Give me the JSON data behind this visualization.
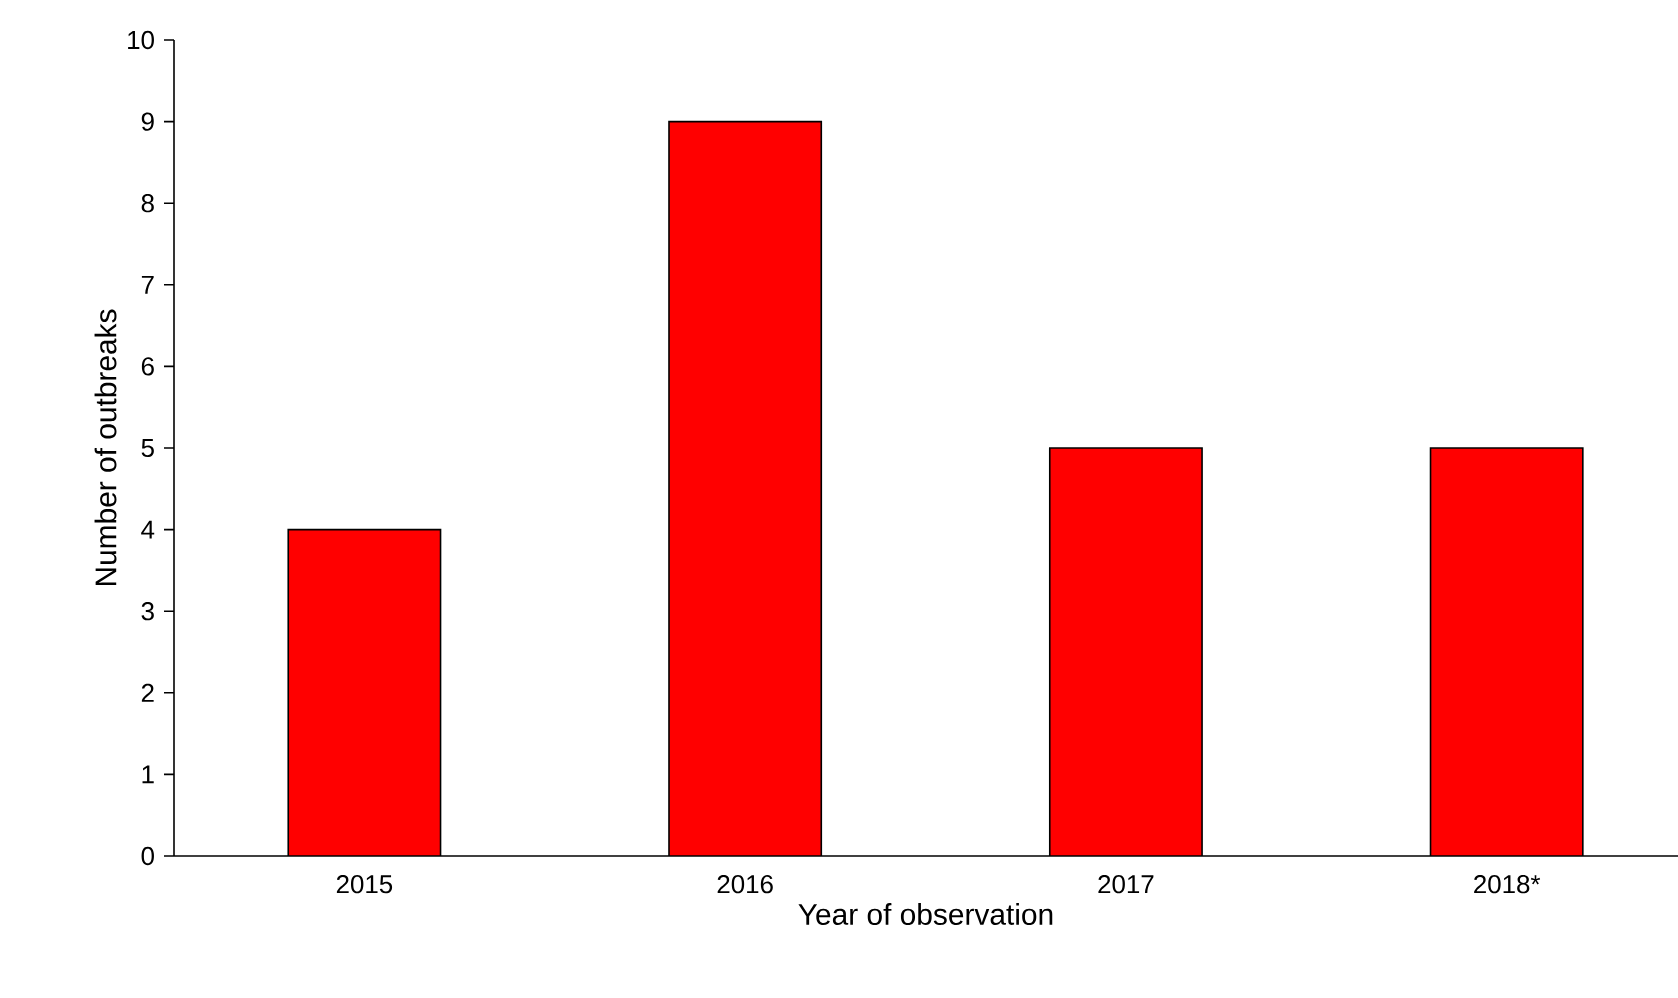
{
  "chart_data": {
    "type": "bar",
    "xlabel": "Year of observation",
    "ylabel": "Number of outbreaks",
    "categories": [
      "2015",
      "2016",
      "2017",
      "2018*"
    ],
    "values": [
      4,
      9,
      5,
      5
    ],
    "color": "#ff0000",
    "ylim": [
      0,
      10
    ],
    "yticks": [
      0,
      1,
      2,
      3,
      4,
      5,
      6,
      7,
      8,
      9,
      10
    ]
  }
}
